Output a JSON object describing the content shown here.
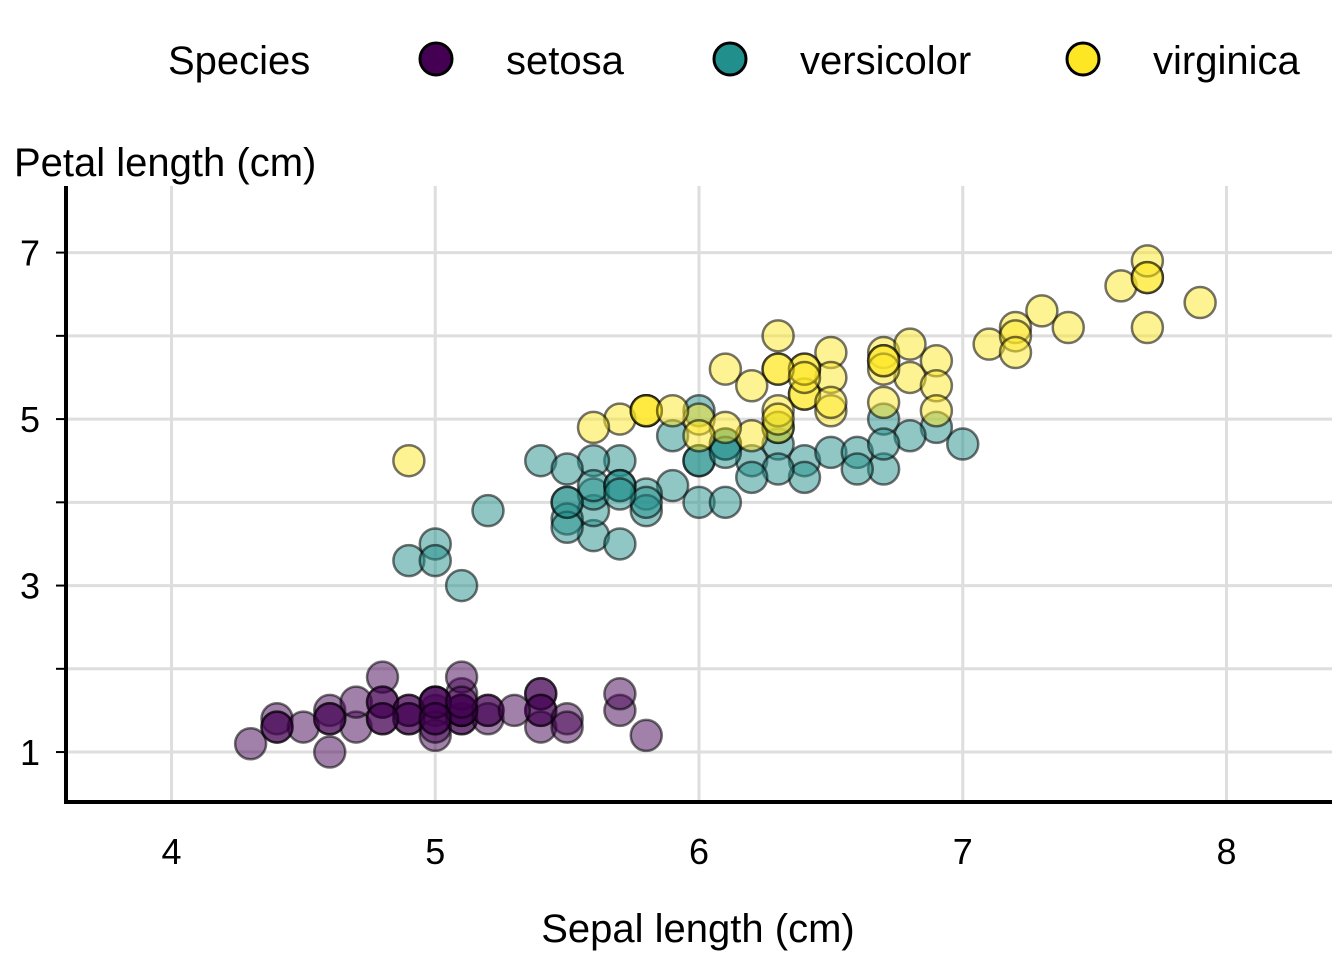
{
  "chart_data": {
    "type": "scatter",
    "xlabel": "Sepal length (cm)",
    "ylabel": "Petal length (cm)",
    "xlim": [
      3.6,
      8.4
    ],
    "ylim": [
      0.4,
      7.8
    ],
    "x_ticks": [
      4,
      5,
      6,
      7,
      8
    ],
    "y_ticks": [
      1,
      3,
      5,
      7
    ],
    "y_minor_gridlines": [
      2,
      4,
      6
    ],
    "grid": true,
    "legend": {
      "title": "Species",
      "position": "top",
      "entries": [
        "setosa",
        "versicolor",
        "virginica"
      ]
    },
    "series": [
      {
        "name": "setosa",
        "color": "#440154",
        "points": [
          [
            5.1,
            1.4
          ],
          [
            4.9,
            1.4
          ],
          [
            4.7,
            1.3
          ],
          [
            4.6,
            1.5
          ],
          [
            5.0,
            1.4
          ],
          [
            5.4,
            1.7
          ],
          [
            4.6,
            1.4
          ],
          [
            5.0,
            1.5
          ],
          [
            4.4,
            1.4
          ],
          [
            4.9,
            1.5
          ],
          [
            5.4,
            1.5
          ],
          [
            4.8,
            1.6
          ],
          [
            4.8,
            1.4
          ],
          [
            4.3,
            1.1
          ],
          [
            5.8,
            1.2
          ],
          [
            5.7,
            1.5
          ],
          [
            5.4,
            1.3
          ],
          [
            5.1,
            1.4
          ],
          [
            5.7,
            1.7
          ],
          [
            5.1,
            1.5
          ],
          [
            5.4,
            1.7
          ],
          [
            5.1,
            1.5
          ],
          [
            4.6,
            1.0
          ],
          [
            5.1,
            1.7
          ],
          [
            4.8,
            1.9
          ],
          [
            5.0,
            1.6
          ],
          [
            5.0,
            1.6
          ],
          [
            5.2,
            1.5
          ],
          [
            5.2,
            1.4
          ],
          [
            4.7,
            1.6
          ],
          [
            4.8,
            1.6
          ],
          [
            5.4,
            1.5
          ],
          [
            5.2,
            1.5
          ],
          [
            5.5,
            1.4
          ],
          [
            4.9,
            1.5
          ],
          [
            5.0,
            1.2
          ],
          [
            5.5,
            1.3
          ],
          [
            4.9,
            1.4
          ],
          [
            4.4,
            1.3
          ],
          [
            5.1,
            1.5
          ],
          [
            5.0,
            1.3
          ],
          [
            4.5,
            1.3
          ],
          [
            4.4,
            1.3
          ],
          [
            5.0,
            1.6
          ],
          [
            5.1,
            1.9
          ],
          [
            4.8,
            1.4
          ],
          [
            5.1,
            1.6
          ],
          [
            4.6,
            1.4
          ],
          [
            5.3,
            1.5
          ],
          [
            5.0,
            1.4
          ]
        ]
      },
      {
        "name": "versicolor",
        "color": "#21908c",
        "points": [
          [
            7.0,
            4.7
          ],
          [
            6.4,
            4.5
          ],
          [
            6.9,
            4.9
          ],
          [
            5.5,
            4.0
          ],
          [
            6.5,
            4.6
          ],
          [
            5.7,
            4.5
          ],
          [
            6.3,
            4.7
          ],
          [
            4.9,
            3.3
          ],
          [
            6.6,
            4.6
          ],
          [
            5.2,
            3.9
          ],
          [
            5.0,
            3.5
          ],
          [
            5.9,
            4.2
          ],
          [
            6.0,
            4.0
          ],
          [
            6.1,
            4.7
          ],
          [
            5.6,
            3.6
          ],
          [
            6.7,
            4.4
          ],
          [
            5.6,
            4.5
          ],
          [
            5.8,
            4.1
          ],
          [
            6.2,
            4.5
          ],
          [
            5.6,
            3.9
          ],
          [
            5.9,
            4.8
          ],
          [
            6.1,
            4.0
          ],
          [
            6.3,
            4.9
          ],
          [
            6.1,
            4.7
          ],
          [
            6.4,
            4.3
          ],
          [
            6.6,
            4.4
          ],
          [
            6.8,
            4.8
          ],
          [
            6.7,
            5.0
          ],
          [
            6.0,
            4.5
          ],
          [
            5.7,
            3.5
          ],
          [
            5.5,
            3.8
          ],
          [
            5.5,
            3.7
          ],
          [
            5.8,
            3.9
          ],
          [
            6.0,
            5.1
          ],
          [
            5.4,
            4.5
          ],
          [
            6.0,
            4.5
          ],
          [
            6.7,
            4.7
          ],
          [
            6.3,
            4.4
          ],
          [
            5.6,
            4.1
          ],
          [
            5.5,
            4.0
          ],
          [
            5.5,
            4.4
          ],
          [
            6.1,
            4.6
          ],
          [
            5.8,
            4.0
          ],
          [
            5.0,
            3.3
          ],
          [
            5.6,
            4.2
          ],
          [
            5.7,
            4.2
          ],
          [
            5.7,
            4.2
          ],
          [
            6.2,
            4.3
          ],
          [
            5.1,
            3.0
          ],
          [
            5.7,
            4.1
          ]
        ]
      },
      {
        "name": "virginica",
        "color": "#fde725",
        "points": [
          [
            6.3,
            6.0
          ],
          [
            5.8,
            5.1
          ],
          [
            7.1,
            5.9
          ],
          [
            6.3,
            5.6
          ],
          [
            6.5,
            5.8
          ],
          [
            7.6,
            6.6
          ],
          [
            4.9,
            4.5
          ],
          [
            7.3,
            6.3
          ],
          [
            6.7,
            5.8
          ],
          [
            7.2,
            6.1
          ],
          [
            6.5,
            5.1
          ],
          [
            6.4,
            5.3
          ],
          [
            6.8,
            5.5
          ],
          [
            5.7,
            5.0
          ],
          [
            5.8,
            5.1
          ],
          [
            6.4,
            5.3
          ],
          [
            6.5,
            5.5
          ],
          [
            7.7,
            6.7
          ],
          [
            7.7,
            6.9
          ],
          [
            6.0,
            5.0
          ],
          [
            6.9,
            5.7
          ],
          [
            5.6,
            4.9
          ],
          [
            7.7,
            6.7
          ],
          [
            6.3,
            4.9
          ],
          [
            6.7,
            5.7
          ],
          [
            7.2,
            6.0
          ],
          [
            6.2,
            4.8
          ],
          [
            6.1,
            4.9
          ],
          [
            6.4,
            5.6
          ],
          [
            7.2,
            5.8
          ],
          [
            7.4,
            6.1
          ],
          [
            7.9,
            6.4
          ],
          [
            6.4,
            5.6
          ],
          [
            6.3,
            5.1
          ],
          [
            6.1,
            5.6
          ],
          [
            7.7,
            6.1
          ],
          [
            6.3,
            5.6
          ],
          [
            6.4,
            5.5
          ],
          [
            6.0,
            4.8
          ],
          [
            6.9,
            5.4
          ],
          [
            6.7,
            5.6
          ],
          [
            6.9,
            5.1
          ],
          [
            5.8,
            5.1
          ],
          [
            6.8,
            5.9
          ],
          [
            6.7,
            5.7
          ],
          [
            6.7,
            5.2
          ],
          [
            6.3,
            5.0
          ],
          [
            6.5,
            5.2
          ],
          [
            6.2,
            5.4
          ],
          [
            5.9,
            5.1
          ]
        ]
      }
    ]
  }
}
